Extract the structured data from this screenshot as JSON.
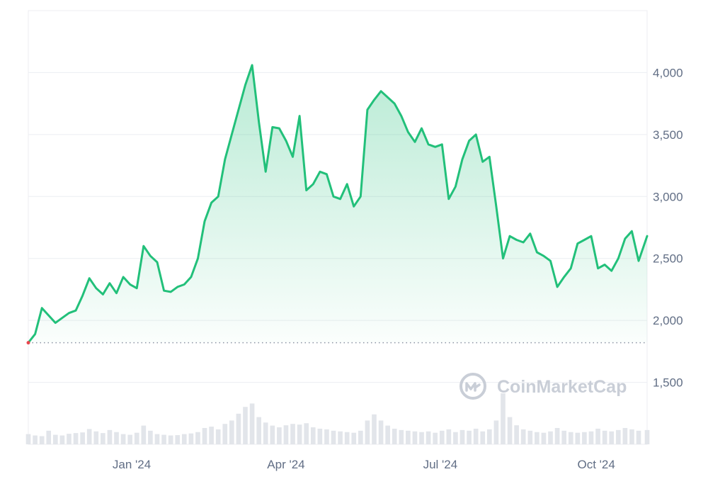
{
  "colors": {
    "line": "#22c07a",
    "fill_top": "#22c07a",
    "grid": "#eceef2",
    "baseline_dotted": "#8a93a3",
    "start_marker": "#e8464f",
    "volume_bars": "#e2e5ea",
    "axis_text": "#616e85",
    "watermark": "#c4c9d3"
  },
  "watermark": {
    "text": "CoinMarketCap",
    "icon": "coinmarketcap-logo-icon"
  },
  "chart_data": {
    "type": "area",
    "title": "",
    "xlabel": "",
    "ylabel": "",
    "ylim": [
      1000,
      4500
    ],
    "x_range": [
      "2023-11-01",
      "2024-10-31"
    ],
    "y_ticks": [
      1500,
      2000,
      2500,
      3000,
      3500,
      4000
    ],
    "y_tick_labels": [
      "1,500",
      "2,000",
      "2,500",
      "3,000",
      "3,500",
      "4,000"
    ],
    "x_ticks": [
      "2024-01-01",
      "2024-04-01",
      "2024-07-01",
      "2024-10-01"
    ],
    "x_tick_labels": [
      "Jan '24",
      "Apr '24",
      "Jul '24",
      "Oct '24"
    ],
    "reference_line": 1820,
    "grid": true,
    "volume_shown": true,
    "series": [
      {
        "x": [
          "2023-11-01",
          "2023-11-05",
          "2023-11-09",
          "2023-11-13",
          "2023-11-17",
          "2023-11-21",
          "2023-11-25",
          "2023-11-29",
          "2023-12-03",
          "2023-12-07",
          "2023-12-11",
          "2023-12-15",
          "2023-12-19",
          "2023-12-23",
          "2023-12-27",
          "2023-12-31",
          "2024-01-04",
          "2024-01-08",
          "2024-01-12",
          "2024-01-16",
          "2024-01-20",
          "2024-01-24",
          "2024-01-28",
          "2024-02-01",
          "2024-02-05",
          "2024-02-09",
          "2024-02-13",
          "2024-02-17",
          "2024-02-21",
          "2024-02-25",
          "2024-02-29",
          "2024-03-04",
          "2024-03-08",
          "2024-03-12",
          "2024-03-16",
          "2024-03-20",
          "2024-03-24",
          "2024-03-28",
          "2024-04-01",
          "2024-04-05",
          "2024-04-09",
          "2024-04-13",
          "2024-04-17",
          "2024-04-21",
          "2024-04-25",
          "2024-04-29",
          "2024-05-03",
          "2024-05-07",
          "2024-05-11",
          "2024-05-15",
          "2024-05-19",
          "2024-05-23",
          "2024-05-27",
          "2024-05-31",
          "2024-06-04",
          "2024-06-08",
          "2024-06-12",
          "2024-06-16",
          "2024-06-20",
          "2024-06-24",
          "2024-06-28",
          "2024-07-02",
          "2024-07-06",
          "2024-07-10",
          "2024-07-14",
          "2024-07-18",
          "2024-07-22",
          "2024-07-26",
          "2024-07-30",
          "2024-08-03",
          "2024-08-07",
          "2024-08-11",
          "2024-08-15",
          "2024-08-19",
          "2024-08-23",
          "2024-08-27",
          "2024-08-31",
          "2024-09-04",
          "2024-09-08",
          "2024-09-12",
          "2024-09-16",
          "2024-09-20",
          "2024-09-24",
          "2024-09-28",
          "2024-10-02",
          "2024-10-06",
          "2024-10-10",
          "2024-10-14",
          "2024-10-18",
          "2024-10-22",
          "2024-10-26",
          "2024-10-31"
        ],
        "values": [
          1820,
          1890,
          2100,
          2040,
          1980,
          2020,
          2060,
          2080,
          2200,
          2340,
          2260,
          2210,
          2300,
          2220,
          2350,
          2290,
          2260,
          2600,
          2520,
          2470,
          2240,
          2230,
          2270,
          2290,
          2350,
          2500,
          2800,
          2950,
          3000,
          3300,
          3500,
          3700,
          3900,
          4060,
          3600,
          3200,
          3560,
          3550,
          3450,
          3320,
          3650,
          3050,
          3100,
          3200,
          3180,
          3000,
          2980,
          3100,
          2920,
          3000,
          3700,
          3780,
          3850,
          3800,
          3750,
          3650,
          3520,
          3440,
          3550,
          3420,
          3400,
          3420,
          2980,
          3080,
          3300,
          3450,
          3500,
          3280,
          3320,
          2920,
          2500,
          2680,
          2650,
          2630,
          2700,
          2550,
          2520,
          2480,
          2270,
          2350,
          2420,
          2620,
          2650,
          2680,
          2420,
          2450,
          2400,
          2500,
          2660,
          2720,
          2480,
          2680
        ]
      }
    ],
    "volume": [
      30,
      26,
      24,
      40,
      28,
      26,
      31,
      33,
      35,
      45,
      38,
      33,
      42,
      36,
      30,
      28,
      34,
      55,
      40,
      30,
      28,
      26,
      27,
      30,
      32,
      36,
      48,
      52,
      44,
      60,
      70,
      90,
      110,
      120,
      80,
      64,
      55,
      50,
      56,
      60,
      58,
      62,
      50,
      46,
      44,
      40,
      38,
      36,
      34,
      40,
      70,
      88,
      70,
      55,
      46,
      42,
      40,
      38,
      36,
      38,
      34,
      40,
      44,
      36,
      42,
      40,
      46,
      38,
      44,
      70,
      150,
      80,
      56,
      44,
      40,
      36,
      34,
      38,
      48,
      40,
      36,
      34,
      36,
      38,
      46,
      40,
      38,
      42,
      48,
      44,
      40,
      42
    ]
  }
}
